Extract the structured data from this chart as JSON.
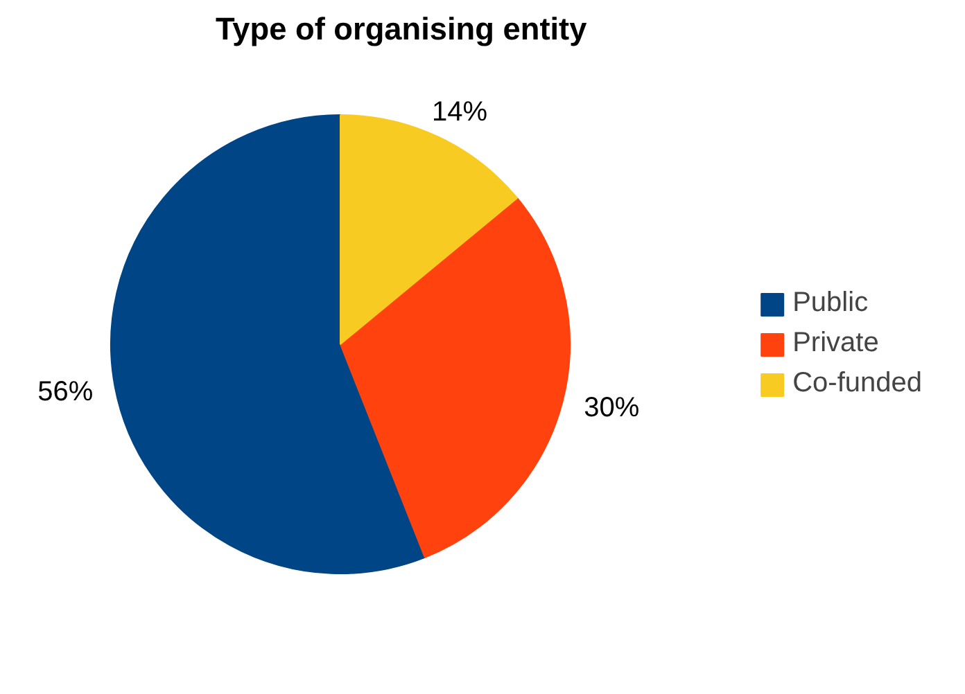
{
  "chart_data": {
    "type": "pie",
    "title": "Type of organising entity",
    "categories": [
      "Public",
      "Private",
      "Co-funded"
    ],
    "values": [
      56,
      30,
      14
    ],
    "colors": [
      "#004586",
      "#ff420e",
      "#f8cb22"
    ],
    "value_labels": [
      "56%",
      "30%",
      "14%"
    ],
    "legend": "right"
  }
}
